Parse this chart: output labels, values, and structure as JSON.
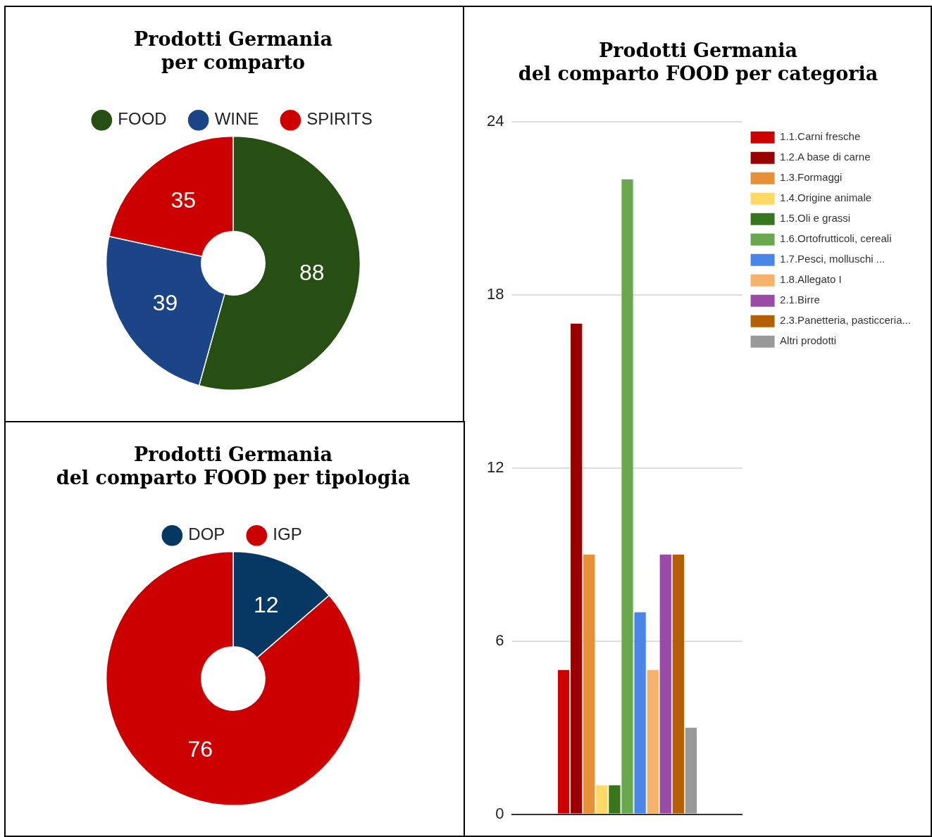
{
  "chart_data": [
    {
      "type": "donut",
      "title": "Prodotti Germania\nper comparto",
      "categories": [
        "FOOD",
        "WINE",
        "SPIRITS"
      ],
      "values": [
        88,
        39,
        35
      ],
      "colors": [
        "#274e13",
        "#1c4587",
        "#cc0000"
      ],
      "legend": "top",
      "data_labels": true
    },
    {
      "type": "bar",
      "title": "Prodotti Germania\ndel comparto FOOD per categoria",
      "categories": [
        null
      ],
      "series": [
        {
          "name": "1.1.Carni fresche",
          "color": "#cc0000",
          "values": [
            5
          ]
        },
        {
          "name": "1.2.A base di carne",
          "color": "#990000",
          "values": [
            17
          ]
        },
        {
          "name": "1.3.Formaggi",
          "color": "#e69138",
          "values": [
            9
          ]
        },
        {
          "name": "1.4.Origine animale",
          "color": "#ffd966",
          "values": [
            1
          ]
        },
        {
          "name": "1.5.Oli e grassi",
          "color": "#38761d",
          "values": [
            1
          ]
        },
        {
          "name": "1.6.Ortofrutticoli, cereali",
          "color": "#6aa84f",
          "values": [
            22
          ]
        },
        {
          "name": "1.7.Pesci, molluschi ...",
          "color": "#4a86e8",
          "values": [
            7
          ]
        },
        {
          "name": "1.8.Allegato I",
          "color": "#f6b26b",
          "values": [
            5
          ]
        },
        {
          "name": "2.1.Birre",
          "color": "#9c4aa8",
          "values": [
            9
          ]
        },
        {
          "name": "2.3.Panetteria, pasticceria...",
          "color": "#b45f06",
          "values": [
            9
          ]
        },
        {
          "name": "Altri prodotti",
          "color": "#999999",
          "values": [
            3
          ]
        }
      ],
      "ylim": [
        0,
        24
      ],
      "yticks": [
        0,
        6,
        12,
        18,
        24
      ],
      "grid": "y",
      "legend": "right"
    },
    {
      "type": "donut",
      "title": "Prodotti Germania\ndel comparto FOOD per tipologia",
      "categories": [
        "DOP",
        "IGP"
      ],
      "values": [
        12,
        76
      ],
      "colors": [
        "#073763",
        "#cc0000"
      ],
      "legend": "top",
      "data_labels": true
    }
  ]
}
